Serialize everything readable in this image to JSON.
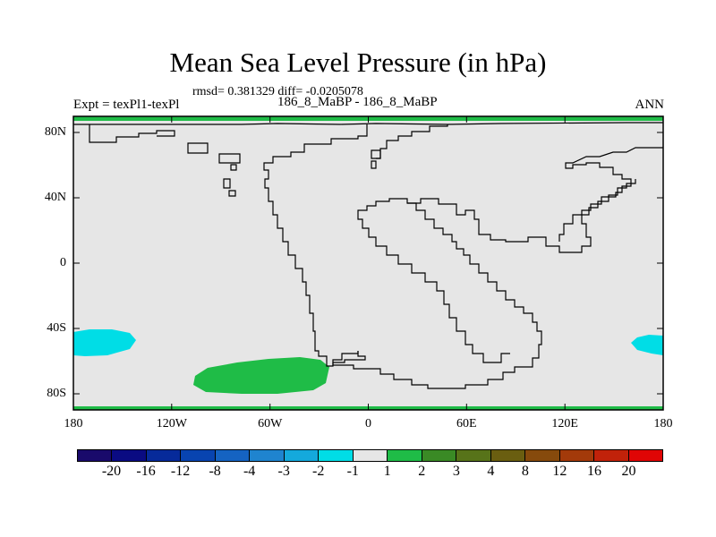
{
  "title": "Mean Sea Level Pressure (in hPa)",
  "stats": "rmsd= 0.381329 diff= -0.0205078",
  "expt": "Expt = texPl1-texPl",
  "case": "186_8_MaBP - 186_8_MaBP",
  "season": "ANN",
  "x_ticks": [
    "180",
    "120W",
    "60W",
    "0",
    "60E",
    "120E",
    "180"
  ],
  "y_ticks": [
    "80N",
    "40N",
    "0",
    "40S",
    "80S"
  ],
  "map": {
    "background_color": "#e6e6e6",
    "coastline_color": "#000000",
    "anomalies": [
      {
        "name": "southwest-pacific-low",
        "value_range": "-2 to -1",
        "color": "#00dde6"
      },
      {
        "name": "south-pacific-high",
        "value_range": "1 to 2",
        "color": "#1fbc47"
      },
      {
        "name": "southeast-pacific-low",
        "value_range": "-2 to -1",
        "color": "#00dde6"
      }
    ]
  },
  "colorbar": {
    "colors": [
      "#190a6b",
      "#0a0b82",
      "#062a9a",
      "#0844b0",
      "#1563c2",
      "#1f84cf",
      "#14a9dc",
      "#00dde6",
      "#e6e6e6",
      "#1fbc47",
      "#3a8a25",
      "#577319",
      "#6a5e10",
      "#864a0c",
      "#a33a0a",
      "#c1220a",
      "#e00505"
    ],
    "labels": [
      "-20",
      "-16",
      "-12",
      "-8",
      "-4",
      "-3",
      "-2",
      "-1",
      "1",
      "2",
      "3",
      "4",
      "8",
      "12",
      "16",
      "20"
    ]
  }
}
